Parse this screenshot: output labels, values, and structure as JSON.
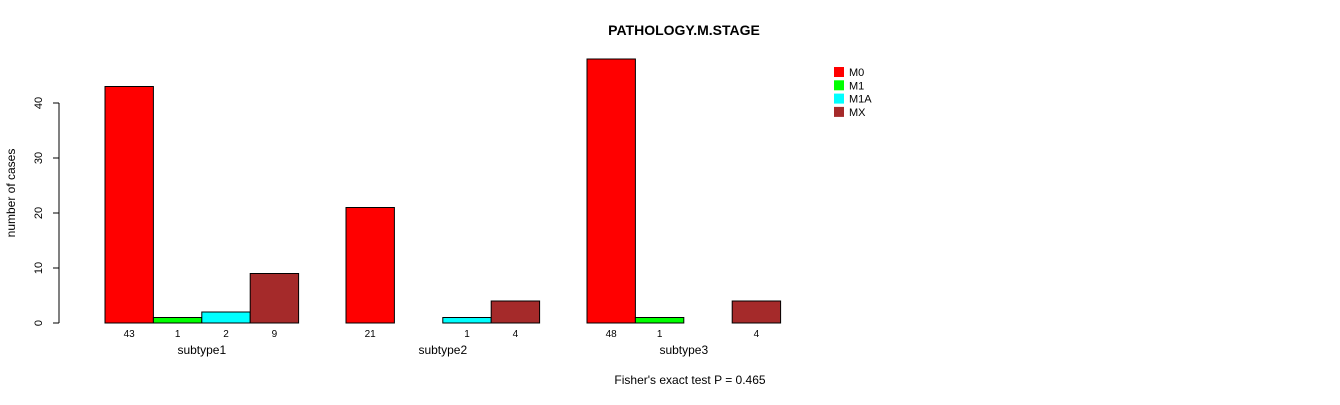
{
  "chart_data": {
    "type": "bar",
    "title": "PATHOLOGY.M.STAGE",
    "xlabel": "",
    "ylabel": "number of cases",
    "ylim": [
      0,
      48
    ],
    "yticks": [
      0,
      10,
      20,
      30,
      40
    ],
    "categories": [
      "subtype1",
      "subtype2",
      "subtype3"
    ],
    "series": [
      {
        "name": "M0",
        "color": "#ff0000",
        "values": [
          43,
          21,
          48
        ]
      },
      {
        "name": "M1",
        "color": "#00ff00",
        "values": [
          1,
          0,
          1
        ]
      },
      {
        "name": "M1A",
        "color": "#00ffff",
        "values": [
          2,
          1,
          0
        ]
      },
      {
        "name": "MX",
        "color": "#a52a2a",
        "values": [
          9,
          4,
          4
        ]
      }
    ],
    "legend_position": "top-right",
    "footnote": "Fisher's exact test P = 0.465"
  }
}
